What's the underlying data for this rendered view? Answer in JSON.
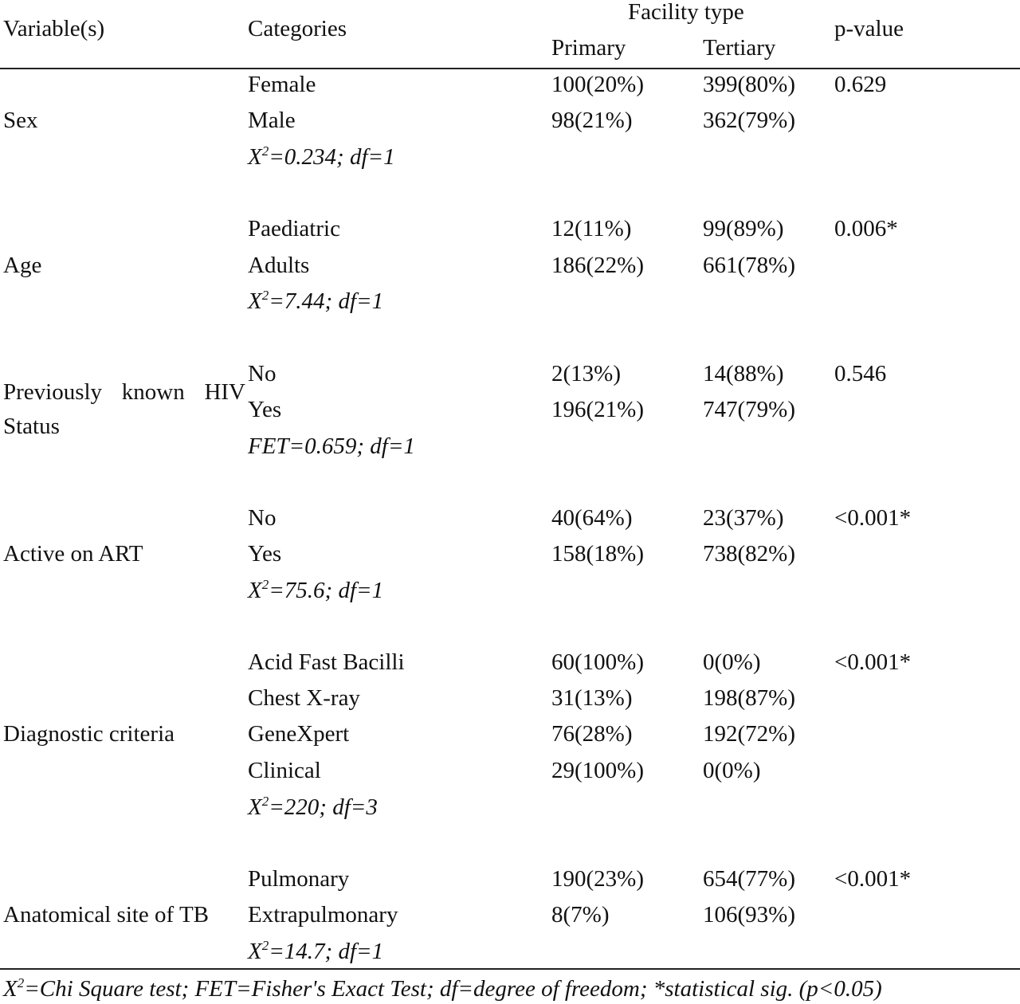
{
  "header": {
    "variable": "Variable(s)",
    "categories": "Categories",
    "facility_type": "Facility type",
    "primary": "Primary",
    "tertiary": "Tertiary",
    "pvalue": "p-value"
  },
  "groups": [
    {
      "variable": "Sex",
      "rows": [
        {
          "category": "Female",
          "primary": "100(20%)",
          "tertiary": "399(80%)"
        },
        {
          "category": "Male",
          "primary": "98(21%)",
          "tertiary": "362(79%)"
        }
      ],
      "test_prefix": "X",
      "test_sup": "2",
      "test_rest": "=0.234; df=1",
      "pvalue": "0.629"
    },
    {
      "variable": "Age",
      "rows": [
        {
          "category": "Paediatric",
          "primary": "12(11%)",
          "tertiary": "99(89%)"
        },
        {
          "category": "Adults",
          "primary": "186(22%)",
          "tertiary": "661(78%)"
        }
      ],
      "test_prefix": "X",
      "test_sup": "2",
      "test_rest": "=7.44; df=1",
      "pvalue": "0.006*"
    },
    {
      "variable_line1": "Previously known HIV",
      "variable_line2": "Status",
      "rows": [
        {
          "category": "No",
          "primary": "2(13%)",
          "tertiary": "14(88%)"
        },
        {
          "category": "Yes",
          "primary": "196(21%)",
          "tertiary": "747(79%)"
        }
      ],
      "test_full": "FET=0.659; df=1",
      "pvalue": "0.546"
    },
    {
      "variable": "Active on ART",
      "rows": [
        {
          "category": "No",
          "primary": "40(64%)",
          "tertiary": "23(37%)"
        },
        {
          "category": "Yes",
          "primary": "158(18%)",
          "tertiary": "738(82%)"
        }
      ],
      "test_prefix": "X",
      "test_sup": "2",
      "test_rest": "=75.6; df=1",
      "pvalue": "<0.001*"
    },
    {
      "variable": "Diagnostic criteria",
      "rows": [
        {
          "category": "Acid Fast Bacilli",
          "primary": "60(100%)",
          "tertiary": "0(0%)"
        },
        {
          "category": "Chest X-ray",
          "primary": "31(13%)",
          "tertiary": "198(87%)"
        },
        {
          "category": "GeneXpert",
          "primary": "76(28%)",
          "tertiary": "192(72%)"
        },
        {
          "category": "Clinical",
          "primary": "29(100%)",
          "tertiary": "0(0%)"
        }
      ],
      "test_prefix": "X",
      "test_sup": "2",
      "test_rest": "=220; df=3",
      "pvalue": "<0.001*"
    },
    {
      "variable": "Anatomical site of TB",
      "rows": [
        {
          "category": "Pulmonary",
          "primary": "190(23%)",
          "tertiary": "654(77%)"
        },
        {
          "category": "Extrapulmonary",
          "primary": "8(7%)",
          "tertiary": "106(93%)"
        }
      ],
      "test_prefix": "X",
      "test_sup": "2",
      "test_rest": "=14.7; df=1",
      "pvalue": "<0.001*"
    }
  ],
  "footnote": {
    "prefix": "X",
    "sup": "2",
    "rest": "=Chi Square test; FET=Fisher's Exact Test; df=degree of freedom; *statistical sig. (p<0.05)"
  }
}
